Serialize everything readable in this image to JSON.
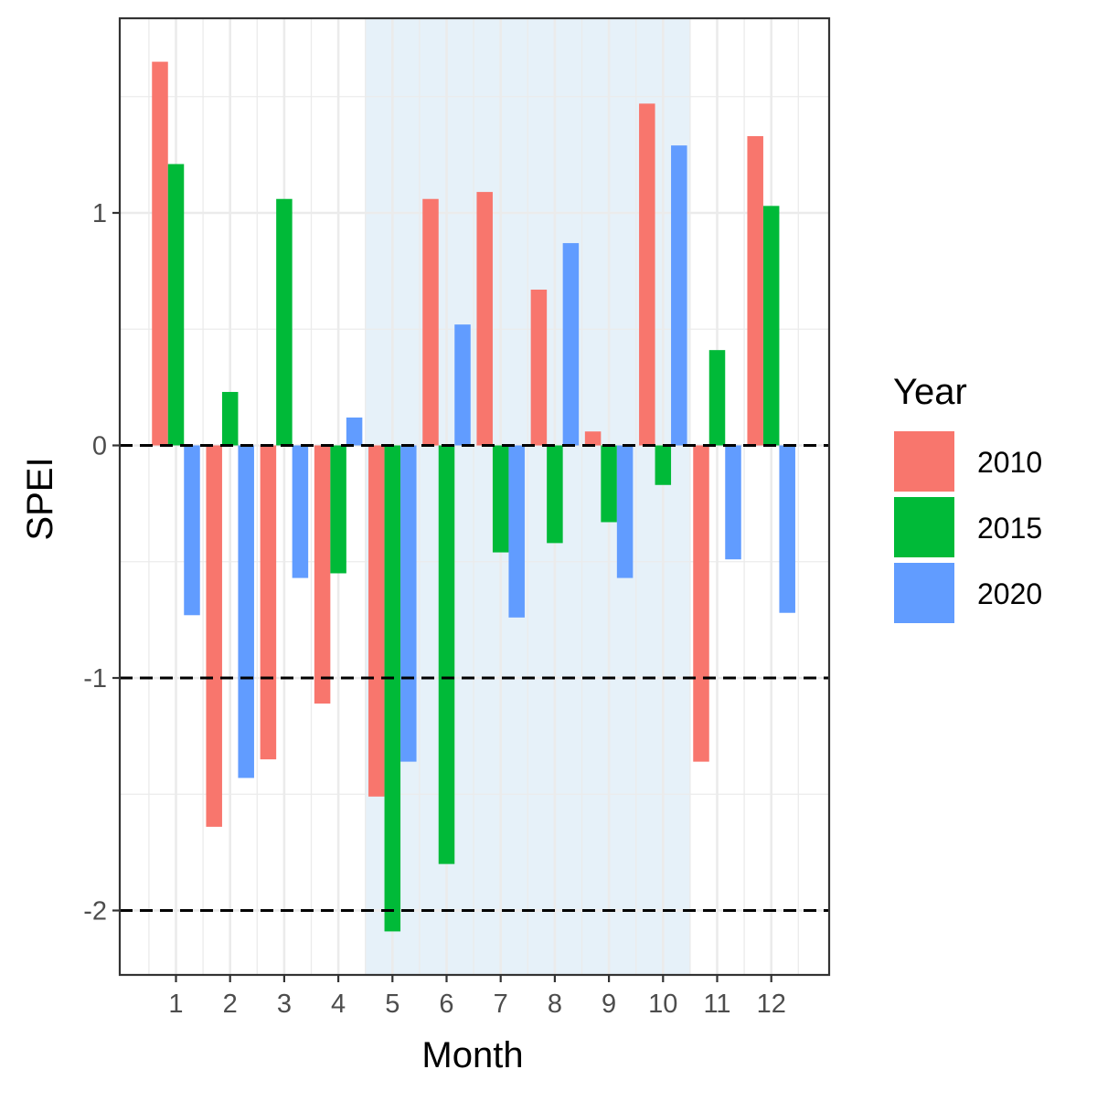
{
  "chart_data": {
    "type": "bar",
    "xlabel": "Month",
    "ylabel": "SPEI",
    "categories": [
      "1",
      "2",
      "3",
      "4",
      "5",
      "6",
      "7",
      "8",
      "9",
      "10",
      "11",
      "12"
    ],
    "series": [
      {
        "name": "2010",
        "color": "#F8766D",
        "values": [
          1.65,
          -1.64,
          -1.35,
          -1.11,
          -1.51,
          1.06,
          1.09,
          0.67,
          0.06,
          1.47,
          -1.36,
          1.33
        ]
      },
      {
        "name": "2015",
        "color": "#00BA38",
        "values": [
          1.21,
          0.23,
          1.06,
          -0.55,
          -2.09,
          -1.8,
          -0.46,
          -0.42,
          -0.33,
          -0.17,
          0.41,
          1.03
        ]
      },
      {
        "name": "2020",
        "color": "#619CFF",
        "values": [
          -0.73,
          -1.43,
          -0.57,
          0.12,
          -1.36,
          0.52,
          -0.74,
          0.87,
          -0.57,
          1.29,
          -0.49,
          -0.72
        ]
      }
    ],
    "ylim": [
      -2.3,
      1.8
    ],
    "y_ticks": [
      "-2",
      "-1",
      "0",
      "1"
    ],
    "y_tick_values": [
      -2,
      -1,
      0,
      1
    ],
    "reference_lines": [
      0,
      -1,
      -2
    ],
    "reference_line_style": "dashed",
    "highlight_band": {
      "from_month": 5,
      "to_month": 10,
      "color": "#D6E8F5"
    },
    "grid": true,
    "legend": {
      "title": "Year",
      "position": "right"
    }
  }
}
